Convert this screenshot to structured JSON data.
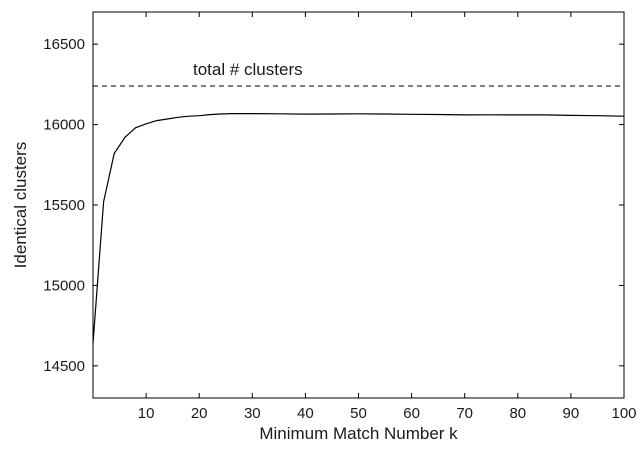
{
  "chart_data": {
    "type": "line",
    "title": "",
    "xlabel": "Minimum Match Number k",
    "ylabel": "Identical clusters",
    "xlim": [
      0,
      100
    ],
    "ylim": [
      14300,
      16700
    ],
    "x_ticks": [
      10,
      20,
      30,
      40,
      50,
      60,
      70,
      80,
      90,
      100
    ],
    "y_ticks": [
      14500,
      15000,
      15500,
      16000,
      16500
    ],
    "grid": false,
    "series": [
      {
        "x": [
          0,
          2,
          4,
          6,
          8,
          10,
          12,
          14,
          16,
          18,
          20,
          22,
          24,
          26,
          30,
          35,
          40,
          45,
          50,
          55,
          60,
          65,
          70,
          75,
          80,
          85,
          90,
          95,
          100
        ],
        "y": [
          14640,
          15520,
          15820,
          15920,
          15980,
          16005,
          16025,
          16035,
          16045,
          16052,
          16055,
          16062,
          16066,
          16068,
          16068,
          16067,
          16065,
          16066,
          16067,
          16066,
          16064,
          16063,
          16060,
          16061,
          16060,
          16060,
          16057,
          16055,
          16052
        ],
        "color": "#000000",
        "style": "solid"
      }
    ],
    "reference_line": {
      "label": "total # clusters",
      "value": 16240,
      "color": "#000000",
      "style": "dashed"
    }
  }
}
